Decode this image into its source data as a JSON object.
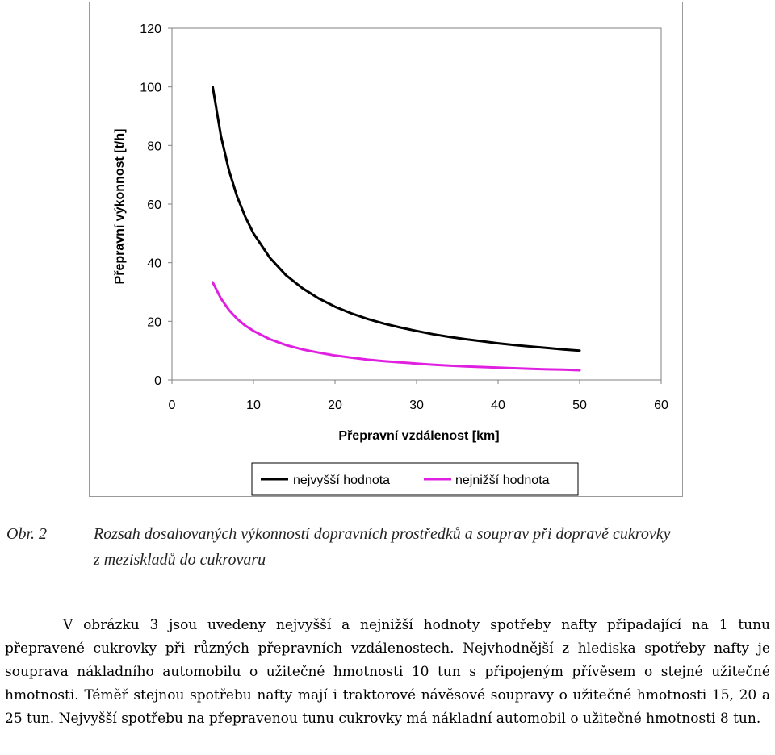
{
  "chart_data": {
    "type": "line",
    "title": "",
    "xlabel": "Přepravní vzdálenost [km]",
    "ylabel": "Přepravní výkonnost [t/h]",
    "xlim": [
      0,
      60
    ],
    "ylim": [
      0,
      120
    ],
    "x_ticks": [
      "0",
      "10",
      "20",
      "30",
      "40",
      "50",
      "60"
    ],
    "y_ticks": [
      "0",
      "20",
      "40",
      "60",
      "80",
      "100",
      "120"
    ],
    "grid": false,
    "legend": "bottom",
    "series": [
      {
        "name": "nejvyšší hodnota",
        "color": "#000000",
        "x": [
          5,
          6,
          7,
          8,
          9,
          10,
          12,
          14,
          16,
          18,
          20,
          22,
          24,
          26,
          28,
          30,
          32,
          34,
          36,
          38,
          40,
          42,
          44,
          46,
          48,
          50
        ],
        "y": [
          100,
          83.3,
          71.4,
          62.5,
          55.6,
          50,
          41.7,
          35.7,
          31.3,
          27.8,
          25,
          22.7,
          20.8,
          19.2,
          17.9,
          16.7,
          15.6,
          14.7,
          13.9,
          13.2,
          12.5,
          11.9,
          11.4,
          10.9,
          10.4,
          10
        ]
      },
      {
        "name": "nejnižší hodnota",
        "color": "#e020e0",
        "x": [
          5,
          6,
          7,
          8,
          9,
          10,
          12,
          14,
          16,
          18,
          20,
          22,
          24,
          26,
          28,
          30,
          32,
          34,
          36,
          38,
          40,
          42,
          44,
          46,
          48,
          50
        ],
        "y": [
          33.3,
          27.8,
          23.8,
          20.8,
          18.5,
          16.7,
          13.9,
          11.9,
          10.4,
          9.3,
          8.3,
          7.6,
          6.9,
          6.4,
          6.0,
          5.6,
          5.2,
          4.9,
          4.6,
          4.4,
          4.2,
          4.0,
          3.8,
          3.6,
          3.5,
          3.3
        ]
      }
    ]
  },
  "caption": {
    "label": "Obr. 2",
    "text": "Rozsah dosahovaných výkonností dopravních prostředků a souprav při dopravě cukrovky z meziskladů do cukrovaru"
  },
  "body": {
    "paragraph": "V obrázku 3 jsou uvedeny nejvyšší a nejnižší hodnoty spotřeby nafty připadající na 1 tunu přepravené cukrovky při různých přepravních vzdálenostech. Nejvhodnější z hlediska spotřeby nafty je souprava nákladního automobilu o užitečné hmotnosti 10 tun s připojeným přívěsem o stejné užitečné hmotnosti. Téměř stejnou spotřebu nafty mají i traktorové návěsové soupravy o užitečné hmotnosti 15, 20 a 25 tun. Nejvyšší spotřebu na přepravenou tunu cukrovky má nákladní automobil o užitečné hmotnosti 8 tun."
  }
}
